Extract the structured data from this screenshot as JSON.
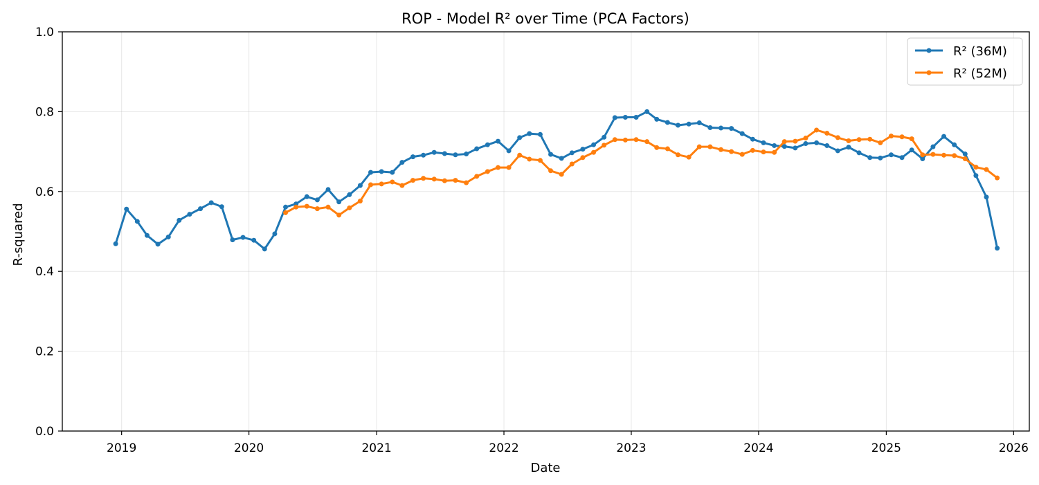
{
  "chart_data": {
    "type": "line",
    "title": "ROP - Model R² over Time (PCA Factors)",
    "xlabel": "Date",
    "ylabel": "R-squared",
    "ylim": [
      0,
      1
    ],
    "yticks": [
      0.0,
      0.2,
      0.4,
      0.6,
      0.8,
      1.0
    ],
    "ytick_labels": [
      "0.0",
      "0.2",
      "0.4",
      "0.6",
      "0.8",
      "1.0"
    ],
    "xlim": [
      "2018-07-15",
      "2026-02-15"
    ],
    "xticks": [
      "2019-01-01",
      "2020-01-01",
      "2021-01-01",
      "2022-01-01",
      "2023-01-01",
      "2024-01-01",
      "2025-01-01",
      "2026-01-01"
    ],
    "xtick_labels": [
      "2019",
      "2020",
      "2021",
      "2022",
      "2023",
      "2024",
      "2025",
      "2026"
    ],
    "grid": true,
    "legend_position": "top-right",
    "series": [
      {
        "name": "R² (36M)",
        "color": "#1f77b4",
        "start": "2018-12",
        "values": [
          0.469,
          0.556,
          0.525,
          0.49,
          0.468,
          0.486,
          0.528,
          0.543,
          0.557,
          0.572,
          0.562,
          0.479,
          0.485,
          0.478,
          0.456,
          0.494,
          0.561,
          0.569,
          0.587,
          0.579,
          0.605,
          0.574,
          0.592,
          0.615,
          0.648,
          0.65,
          0.648,
          0.673,
          0.687,
          0.691,
          0.698,
          0.695,
          0.692,
          0.694,
          0.707,
          0.717,
          0.726,
          0.702,
          0.735,
          0.745,
          0.743,
          0.693,
          0.683,
          0.697,
          0.706,
          0.717,
          0.736,
          0.785,
          0.786,
          0.786,
          0.8,
          0.781,
          0.773,
          0.766,
          0.769,
          0.772,
          0.76,
          0.759,
          0.758,
          0.745,
          0.731,
          0.722,
          0.715,
          0.713,
          0.709,
          0.72,
          0.722,
          0.715,
          0.702,
          0.711,
          0.697,
          0.685,
          0.684,
          0.692,
          0.685,
          0.704,
          0.682,
          0.712,
          0.738,
          0.717,
          0.694,
          0.64,
          0.586,
          0.458
        ]
      },
      {
        "name": "R² (52M)",
        "color": "#ff7f0e",
        "start": "2020-04",
        "values": [
          0.547,
          0.561,
          0.563,
          0.557,
          0.561,
          0.541,
          0.559,
          0.576,
          0.617,
          0.619,
          0.624,
          0.615,
          0.628,
          0.633,
          0.631,
          0.627,
          0.628,
          0.622,
          0.638,
          0.65,
          0.66,
          0.66,
          0.691,
          0.681,
          0.678,
          0.652,
          0.643,
          0.669,
          0.685,
          0.698,
          0.716,
          0.73,
          0.729,
          0.73,
          0.725,
          0.71,
          0.707,
          0.692,
          0.686,
          0.712,
          0.712,
          0.705,
          0.7,
          0.693,
          0.703,
          0.699,
          0.698,
          0.725,
          0.726,
          0.734,
          0.754,
          0.746,
          0.735,
          0.727,
          0.73,
          0.731,
          0.722,
          0.739,
          0.737,
          0.732,
          0.692,
          0.693,
          0.691,
          0.69,
          0.682,
          0.661,
          0.655,
          0.634
        ]
      }
    ]
  }
}
